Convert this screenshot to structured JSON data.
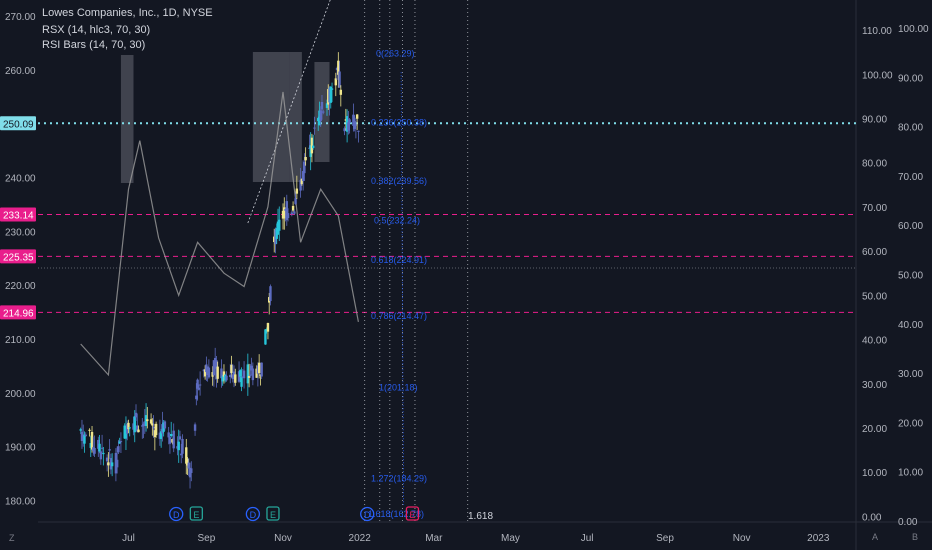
{
  "header": {
    "title": "Lowes Companies, Inc., 1D, NYSE",
    "indicator1": "RSX (14, hlc3, 70, 30)",
    "indicator2": "RSI Bars (14, 70, 30)"
  },
  "colors": {
    "background": "#131722",
    "up": "#f0e68c",
    "up_alt": "#26c6da",
    "down": "#5c6bc0",
    "rsx_line": "#9e9e9e",
    "price_line": "#80deea",
    "pink_level": "#e91e8c",
    "fib_text": "#2962ff"
  },
  "chart_data": {
    "type": "candlestick",
    "title": "Lowes Companies, Inc., 1D, NYSE",
    "price_axis": {
      "ticks": [
        "270.00",
        "260.00",
        "250.00",
        "240.00",
        "230.00",
        "220.00",
        "210.00",
        "200.00",
        "190.00",
        "180.00"
      ],
      "ylim": [
        176,
        273
      ]
    },
    "rsx_axis": {
      "ticks": [
        "110.00",
        "100.00",
        "90.00",
        "80.00",
        "70.00",
        "60.00",
        "50.00",
        "40.00",
        "30.00",
        "20.00",
        "10.00",
        "0.00"
      ],
      "ylim": [
        -1.5,
        115
      ]
    },
    "rsi_axis": {
      "ticks": [
        "100.00",
        "90.00",
        "80.00",
        "70.00",
        "60.00",
        "50.00",
        "40.00",
        "30.00",
        "20.00",
        "10.00",
        "0.00"
      ],
      "ylim": [
        0,
        101
      ]
    },
    "time_axis": [
      "Jul",
      "Sep",
      "Nov",
      "2022",
      "Mar",
      "May",
      "Jul",
      "Sep",
      "Nov",
      "2023"
    ],
    "price_levels": [
      {
        "label": "250.09",
        "value": 250.09,
        "kind": "current"
      },
      {
        "label": "233.14",
        "value": 233.14,
        "kind": "level"
      },
      {
        "label": "225.35",
        "value": 225.35,
        "kind": "level"
      },
      {
        "label": "214.96",
        "value": 214.96,
        "kind": "level"
      }
    ],
    "fib_levels": [
      {
        "label": "0(263.29)",
        "value": 263.29
      },
      {
        "label": "0.236(250.38)",
        "value": 250.38
      },
      {
        "label": "0.382(239.56)",
        "value": 239.56
      },
      {
        "label": "0.5(232.24)",
        "value": 232.24
      },
      {
        "label": "0.618(224.91)",
        "value": 224.91
      },
      {
        "label": "0.786(214.47)",
        "value": 214.47
      },
      {
        "label": "1(201.18)",
        "value": 201.18
      },
      {
        "label": "1.272(184.29)",
        "value": 184.29
      },
      {
        "label": "1.618(162.78)",
        "value": 162.78
      }
    ],
    "fib_extension_label": "1.618",
    "event_markers": [
      {
        "label": "D",
        "date": "Aug 2021"
      },
      {
        "label": "E",
        "date": "Aug 2021"
      },
      {
        "label": "D",
        "date": "Oct 2021"
      },
      {
        "label": "E",
        "date": "Nov 2021"
      },
      {
        "label": "D",
        "date": "Jan 2022"
      },
      {
        "label": "E",
        "date": "Feb 2022"
      }
    ],
    "price_series": [
      {
        "date": "2021-05-24",
        "close": 193
      },
      {
        "date": "2021-06-01",
        "close": 191
      },
      {
        "date": "2021-06-15",
        "close": 188
      },
      {
        "date": "2021-06-21",
        "close": 187
      },
      {
        "date": "2021-07-01",
        "close": 195
      },
      {
        "date": "2021-07-15",
        "close": 194
      },
      {
        "date": "2021-08-01",
        "close": 193
      },
      {
        "date": "2021-08-15",
        "close": 189
      },
      {
        "date": "2021-08-20",
        "close": 185
      },
      {
        "date": "2021-08-25",
        "close": 201
      },
      {
        "date": "2021-09-01",
        "close": 205
      },
      {
        "date": "2021-09-15",
        "close": 204
      },
      {
        "date": "2021-10-01",
        "close": 203
      },
      {
        "date": "2021-10-15",
        "close": 205
      },
      {
        "date": "2021-10-20",
        "close": 213
      },
      {
        "date": "2021-10-25",
        "close": 228
      },
      {
        "date": "2021-11-01",
        "close": 233
      },
      {
        "date": "2021-11-10",
        "close": 235
      },
      {
        "date": "2021-11-20",
        "close": 243
      },
      {
        "date": "2021-12-01",
        "close": 252
      },
      {
        "date": "2021-12-10",
        "close": 256
      },
      {
        "date": "2021-12-15",
        "close": 260
      },
      {
        "date": "2021-12-20",
        "close": 250
      },
      {
        "date": "2021-12-31",
        "close": 250
      }
    ],
    "rsx_series": [
      {
        "date": "2021-05-24",
        "value": 39
      },
      {
        "date": "2021-06-15",
        "value": 32
      },
      {
        "date": "2021-07-01",
        "value": 74
      },
      {
        "date": "2021-07-10",
        "value": 85
      },
      {
        "date": "2021-07-25",
        "value": 63
      },
      {
        "date": "2021-08-10",
        "value": 50
      },
      {
        "date": "2021-08-25",
        "value": 62
      },
      {
        "date": "2021-09-15",
        "value": 55
      },
      {
        "date": "2021-10-01",
        "value": 52
      },
      {
        "date": "2021-10-20",
        "value": 70
      },
      {
        "date": "2021-11-01",
        "value": 96
      },
      {
        "date": "2021-11-15",
        "value": 62
      },
      {
        "date": "2021-12-01",
        "value": 74
      },
      {
        "date": "2021-12-15",
        "value": 68
      },
      {
        "date": "2021-12-31",
        "value": 44
      }
    ]
  },
  "buttons": {
    "zoom": "Z",
    "auto": "A",
    "log": "B"
  }
}
